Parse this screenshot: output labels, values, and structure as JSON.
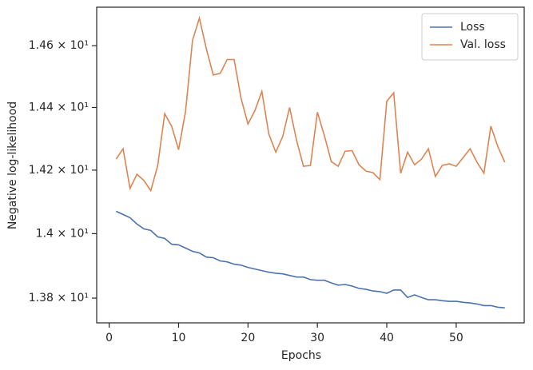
{
  "chart_data": {
    "type": "line",
    "xlabel": "Epochs",
    "ylabel": "Negative log-likelihood",
    "x": [
      1,
      2,
      3,
      4,
      5,
      6,
      7,
      8,
      9,
      10,
      11,
      12,
      13,
      14,
      15,
      16,
      17,
      18,
      19,
      20,
      21,
      22,
      23,
      24,
      25,
      26,
      27,
      28,
      29,
      30,
      31,
      32,
      33,
      34,
      35,
      36,
      37,
      38,
      39,
      40,
      41,
      42,
      43,
      44,
      45,
      46,
      47,
      48,
      49,
      50,
      51,
      52,
      53,
      54,
      55,
      56,
      57
    ],
    "series": [
      {
        "name": "Loss",
        "color": "#4c72b0",
        "values": [
          14.07,
          14.06,
          14.05,
          14.03,
          14.015,
          14.01,
          13.99,
          13.985,
          13.967,
          13.965,
          13.955,
          13.945,
          13.94,
          13.927,
          13.925,
          13.915,
          13.912,
          13.905,
          13.902,
          13.895,
          13.89,
          13.885,
          13.88,
          13.877,
          13.875,
          13.87,
          13.865,
          13.865,
          13.857,
          13.855,
          13.855,
          13.847,
          13.84,
          13.842,
          13.837,
          13.83,
          13.827,
          13.822,
          13.82,
          13.815,
          13.825,
          13.825,
          13.802,
          13.81,
          13.802,
          13.795,
          13.795,
          13.792,
          13.79,
          13.79,
          13.787,
          13.785,
          13.782,
          13.777,
          13.777,
          13.772,
          13.77
        ]
      },
      {
        "name": "Val. loss",
        "color": "#dd8452",
        "values": [
          14.235,
          14.268,
          14.142,
          14.187,
          14.167,
          14.135,
          14.215,
          14.38,
          14.34,
          14.265,
          14.387,
          14.617,
          14.69,
          14.59,
          14.505,
          14.51,
          14.555,
          14.555,
          14.43,
          14.347,
          14.39,
          14.452,
          14.315,
          14.257,
          14.307,
          14.4,
          14.295,
          14.212,
          14.215,
          14.385,
          14.31,
          14.227,
          14.212,
          14.26,
          14.262,
          14.217,
          14.197,
          14.192,
          14.17,
          14.42,
          14.447,
          14.19,
          14.257,
          14.217,
          14.235,
          14.268,
          14.18,
          14.215,
          14.22,
          14.212,
          14.24,
          14.268,
          14.225,
          14.19,
          14.34,
          14.275,
          14.225
        ]
      }
    ],
    "xlim": [
      -1.8,
      59.8
    ],
    "xticks": [
      0,
      10,
      20,
      30,
      40,
      50
    ],
    "ylim": [
      13.724,
      14.726
    ],
    "ylog": true,
    "yticks": [
      {
        "value": 13.8,
        "label": "1.38 × 10¹"
      },
      {
        "value": 14.0,
        "label": "1.4 × 10¹"
      },
      {
        "value": 14.2,
        "label": "1.42 × 10¹"
      },
      {
        "value": 14.4,
        "label": "1.44 × 10¹"
      },
      {
        "value": 14.6,
        "label": "1.46 × 10¹"
      }
    ],
    "legend": "upper right"
  }
}
